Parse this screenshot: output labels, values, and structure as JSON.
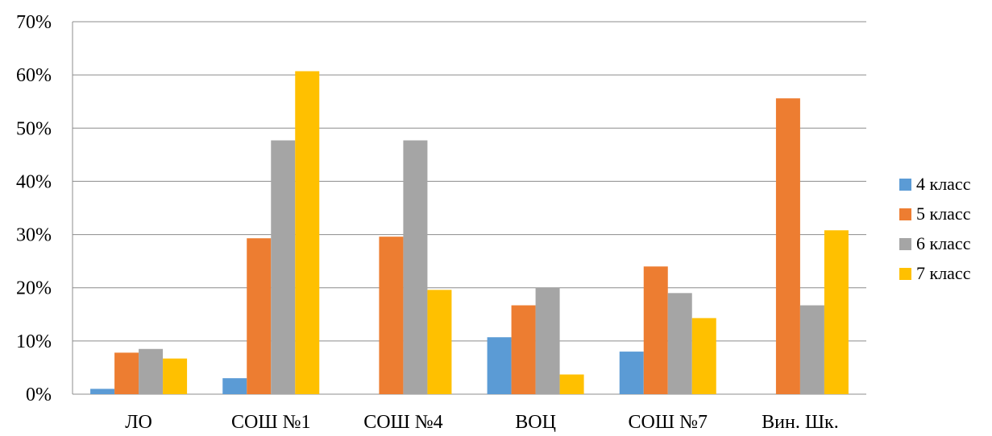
{
  "chart_data": {
    "type": "bar",
    "title": "",
    "xlabel": "",
    "ylabel": "",
    "categories": [
      "ЛО",
      "СОШ №1",
      "СОШ №4",
      "ВОЦ",
      "СОШ №7",
      "Вин. Шк."
    ],
    "series": [
      {
        "name": "4 класс",
        "color": "#5B9BD5",
        "values": [
          1,
          3,
          0,
          10.7,
          8,
          0
        ]
      },
      {
        "name": "5 класс",
        "color": "#ED7D31",
        "values": [
          7.8,
          29.3,
          29.6,
          16.7,
          24,
          55.6
        ]
      },
      {
        "name": "6 класс",
        "color": "#A5A5A5",
        "values": [
          8.5,
          47.7,
          47.7,
          20,
          19,
          16.7
        ]
      },
      {
        "name": "7 класс",
        "color": "#FFC000",
        "values": [
          6.7,
          60.7,
          19.6,
          3.7,
          14.3,
          30.8
        ]
      }
    ],
    "ylim": [
      0,
      70
    ],
    "yticks": [
      "0%",
      "10%",
      "20%",
      "30%",
      "40%",
      "50%",
      "60%",
      "70%"
    ],
    "grid": true,
    "legend_position": "right"
  }
}
